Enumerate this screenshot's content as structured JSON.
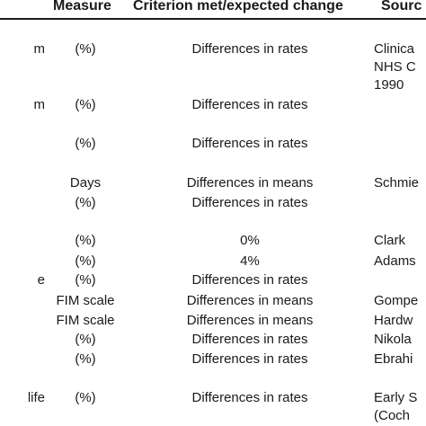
{
  "table": {
    "headers": {
      "measure": "Measure",
      "criterion": "Criterion met/expected change",
      "source": "Sourc"
    },
    "rows": [
      {
        "name": "m",
        "measure": "(%)",
        "criterion": "Differences in rates",
        "source_lines": [
          "Clinica",
          "NHS C",
          "1990"
        ]
      },
      {
        "name": "m",
        "measure": "(%)",
        "criterion": "Differences in rates",
        "source_lines": []
      },
      {
        "name": "",
        "measure": "(%)",
        "criterion": "Differences in rates",
        "source_lines": []
      },
      {
        "name": "",
        "measure": "Days",
        "criterion": "Differences in means",
        "source_lines": [
          "Schmie"
        ]
      },
      {
        "name": "",
        "measure": "(%)",
        "criterion": "Differences in rates",
        "source_lines": []
      },
      {
        "name": "",
        "measure": "(%)",
        "criterion": "0%",
        "source_lines": [
          "Clark"
        ]
      },
      {
        "name": "",
        "measure": "(%)",
        "criterion": "4%",
        "source_lines": [
          "Adams"
        ]
      },
      {
        "name": "e",
        "measure": "(%)",
        "criterion": "Differences in rates",
        "source_lines": []
      },
      {
        "name": "",
        "measure": "FIM scale",
        "criterion": "Differences in means",
        "source_lines": [
          "Gompe"
        ]
      },
      {
        "name": "",
        "measure": "FIM scale",
        "criterion": "Differences in means",
        "source_lines": [
          "Hardw"
        ]
      },
      {
        "name": "",
        "measure": "(%)",
        "criterion": "Differences in rates",
        "source_lines": [
          "Nikola"
        ]
      },
      {
        "name": "",
        "measure": "(%)",
        "criterion": "Differences in rates",
        "source_lines": [
          "Ebrahi"
        ]
      },
      {
        "name": "life",
        "measure": "(%)",
        "criterion": "Differences in rates",
        "source_lines": [
          "Early S",
          "(Coch"
        ]
      }
    ]
  }
}
